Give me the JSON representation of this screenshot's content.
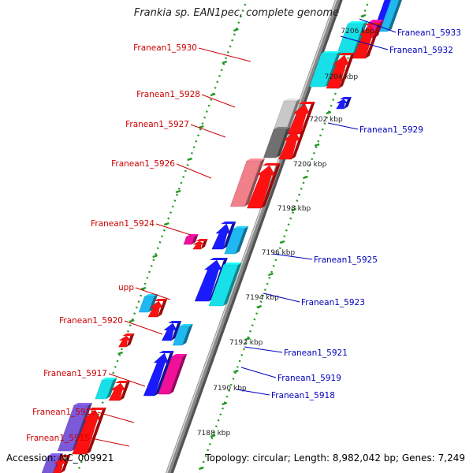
{
  "title": "Frankia sp. EAN1pec, complete genome",
  "footer": {
    "accession": "Accession: NC_009921",
    "summary": "Topology: circular; Length: 8,982,042 bp; Genes: 7,249"
  },
  "colors": {
    "backbone": "#8a8a8a",
    "forward_label": "#cc0000",
    "reverse_label": "#0000bb",
    "ticks": "#229922",
    "red": "#ff1010",
    "cyan": "#18e0e8",
    "blue": "#1a1aff",
    "lightblue": "#20b8f0",
    "pink": "#f0808a",
    "silver": "#c8c8c8",
    "darkgray": "#707070",
    "magenta": "#f0109a",
    "purple": "#7a5ad8"
  },
  "scale": {
    "unit": "kbp",
    "ticks": [
      "7206 kbp",
      "7204 kbp",
      "7202 kbp",
      "7200 kbp",
      "7198 kbp",
      "7196 kbp",
      "7194 kbp",
      "7192 kbp",
      "7190 kbp",
      "7188 kbp"
    ]
  },
  "left_labels": [
    "Franean1_5930",
    "Franean1_5928",
    "Franean1_5927",
    "Franean1_5926",
    "Franean1_5924",
    "upp",
    "Franean1_5920",
    "Franean1_5917",
    "Franean1_5916",
    "Franean1_5915"
  ],
  "right_labels": [
    "Franean1_5933",
    "Franean1_5932",
    "Franean1_5929",
    "Franean1_5925",
    "Franean1_5923",
    "Franean1_5921",
    "Franean1_5919",
    "Franean1_5918"
  ]
}
